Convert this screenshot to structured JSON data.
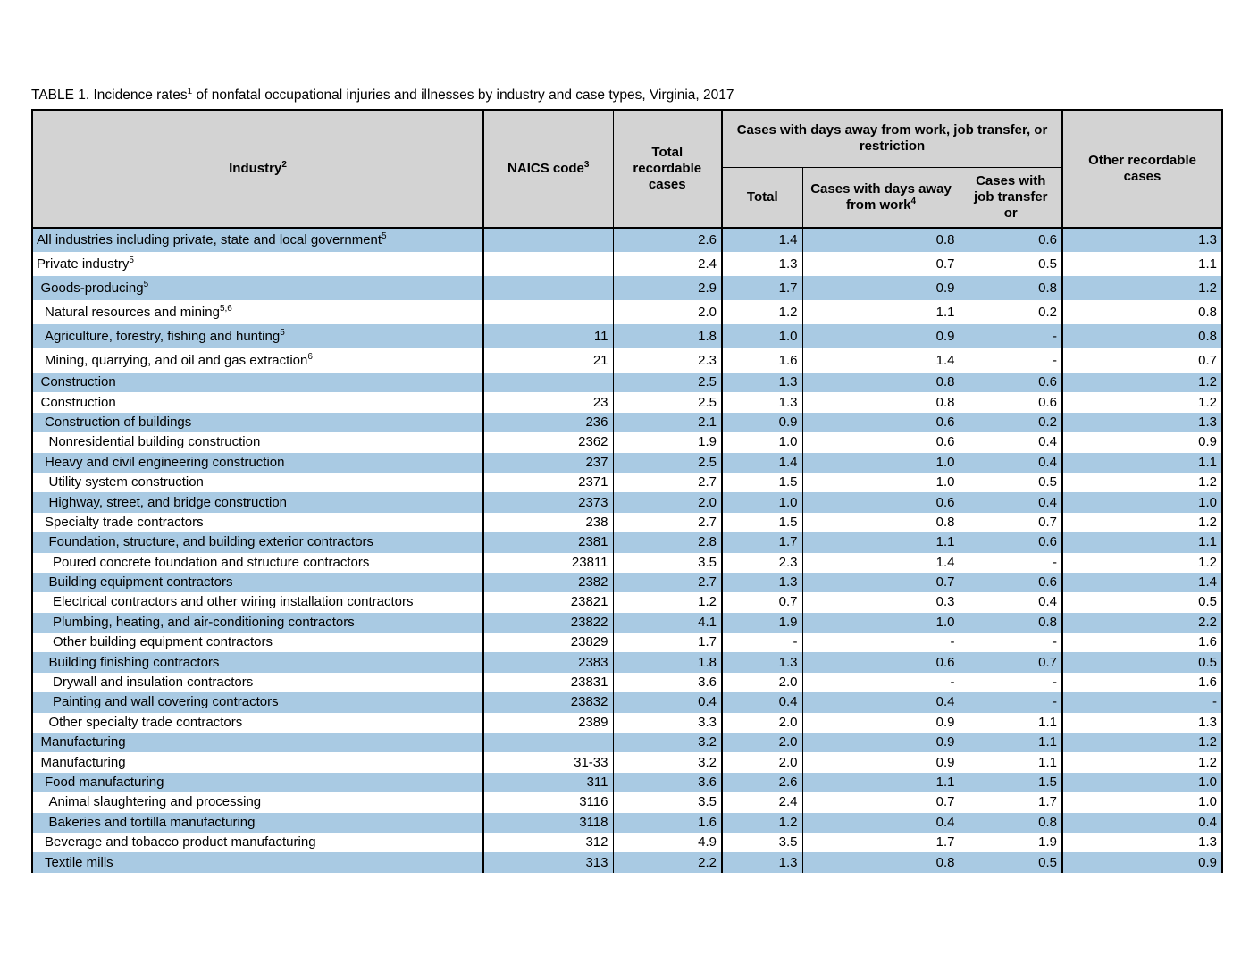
{
  "title": {
    "prefix": "TABLE 1. Incidence rates",
    "sup": "1",
    "suffix": " of nonfatal occupational injuries and illnesses by industry and case types, Virginia, 2017"
  },
  "colors": {
    "row_blue": "#a9cae3",
    "header_gray": "#d3d3d3",
    "border": "#000000"
  },
  "table": {
    "headers": {
      "industry": {
        "label": "Industry",
        "sup": "2"
      },
      "naics": {
        "label": "NAICS code",
        "sup": "3"
      },
      "total_recordable": "Total recordable cases",
      "group": "Cases with days away from work, job transfer, or restriction",
      "total": "Total",
      "days_away": {
        "label": "Cases with days away from work",
        "sup": "4"
      },
      "job_transfer": "Cases with job transfer or",
      "other": "Other recordable cases"
    },
    "rows": [
      {
        "industry": "All industries including private, state and local government",
        "sup": "5",
        "indent": 0,
        "naics": "",
        "values": [
          "2.6",
          "1.4",
          "0.8",
          "0.6",
          "1.3"
        ]
      },
      {
        "industry": "Private industry",
        "sup": "5",
        "indent": 0,
        "naics": "",
        "values": [
          "2.4",
          "1.3",
          "0.7",
          "0.5",
          "1.1"
        ]
      },
      {
        "industry": "Goods-producing",
        "sup": "5",
        "indent": 1,
        "naics": "",
        "values": [
          "2.9",
          "1.7",
          "0.9",
          "0.8",
          "1.2"
        ]
      },
      {
        "industry": "Natural resources and mining",
        "sup": "5,6",
        "indent": 2,
        "naics": "",
        "values": [
          "2.0",
          "1.2",
          "1.1",
          "0.2",
          "0.8"
        ]
      },
      {
        "industry": "Agriculture, forestry, fishing and hunting",
        "sup": "5",
        "indent": 2,
        "naics": "11",
        "values": [
          "1.8",
          "1.0",
          "0.9",
          "-",
          "0.8"
        ]
      },
      {
        "industry": "Mining, quarrying, and oil and gas extraction",
        "sup": "6",
        "indent": 2,
        "naics": "21",
        "values": [
          "2.3",
          "1.6",
          "1.4",
          "-",
          "0.7"
        ]
      },
      {
        "industry": "Construction",
        "sup": "",
        "indent": 1,
        "naics": "",
        "values": [
          "2.5",
          "1.3",
          "0.8",
          "0.6",
          "1.2"
        ]
      },
      {
        "industry": "Construction",
        "sup": "",
        "indent": 1,
        "naics": "23",
        "values": [
          "2.5",
          "1.3",
          "0.8",
          "0.6",
          "1.2"
        ]
      },
      {
        "industry": "Construction of buildings",
        "sup": "",
        "indent": 2,
        "naics": "236",
        "values": [
          "2.1",
          "0.9",
          "0.6",
          "0.2",
          "1.3"
        ]
      },
      {
        "industry": "Nonresidential building construction",
        "sup": "",
        "indent": 3,
        "naics": "2362",
        "values": [
          "1.9",
          "1.0",
          "0.6",
          "0.4",
          "0.9"
        ]
      },
      {
        "industry": "Heavy and civil engineering construction",
        "sup": "",
        "indent": 2,
        "naics": "237",
        "values": [
          "2.5",
          "1.4",
          "1.0",
          "0.4",
          "1.1"
        ]
      },
      {
        "industry": "Utility system construction",
        "sup": "",
        "indent": 3,
        "naics": "2371",
        "values": [
          "2.7",
          "1.5",
          "1.0",
          "0.5",
          "1.2"
        ]
      },
      {
        "industry": "Highway, street, and bridge construction",
        "sup": "",
        "indent": 3,
        "naics": "2373",
        "values": [
          "2.0",
          "1.0",
          "0.6",
          "0.4",
          "1.0"
        ]
      },
      {
        "industry": "Specialty trade contractors",
        "sup": "",
        "indent": 2,
        "naics": "238",
        "values": [
          "2.7",
          "1.5",
          "0.8",
          "0.7",
          "1.2"
        ]
      },
      {
        "industry": "Foundation, structure, and building exterior contractors",
        "sup": "",
        "indent": 3,
        "naics": "2381",
        "values": [
          "2.8",
          "1.7",
          "1.1",
          "0.6",
          "1.1"
        ]
      },
      {
        "industry": "Poured concrete foundation and structure contractors",
        "sup": "",
        "indent": 4,
        "naics": "23811",
        "values": [
          "3.5",
          "2.3",
          "1.4",
          "-",
          "1.2"
        ]
      },
      {
        "industry": "Building equipment contractors",
        "sup": "",
        "indent": 3,
        "naics": "2382",
        "values": [
          "2.7",
          "1.3",
          "0.7",
          "0.6",
          "1.4"
        ]
      },
      {
        "industry": "Electrical contractors and other wiring installation contractors",
        "sup": "",
        "indent": 4,
        "naics": "23821",
        "values": [
          "1.2",
          "0.7",
          "0.3",
          "0.4",
          "0.5"
        ]
      },
      {
        "industry": "Plumbing, heating, and air-conditioning contractors",
        "sup": "",
        "indent": 4,
        "naics": "23822",
        "values": [
          "4.1",
          "1.9",
          "1.0",
          "0.8",
          "2.2"
        ]
      },
      {
        "industry": "Other building equipment contractors",
        "sup": "",
        "indent": 4,
        "naics": "23829",
        "values": [
          "1.7",
          "-",
          "-",
          "-",
          "1.6"
        ]
      },
      {
        "industry": "Building finishing contractors",
        "sup": "",
        "indent": 3,
        "naics": "2383",
        "values": [
          "1.8",
          "1.3",
          "0.6",
          "0.7",
          "0.5"
        ]
      },
      {
        "industry": "Drywall and insulation contractors",
        "sup": "",
        "indent": 4,
        "naics": "23831",
        "values": [
          "3.6",
          "2.0",
          "-",
          "-",
          "1.6"
        ]
      },
      {
        "industry": "Painting and wall covering contractors",
        "sup": "",
        "indent": 4,
        "naics": "23832",
        "values": [
          "0.4",
          "0.4",
          "0.4",
          "-",
          "-"
        ]
      },
      {
        "industry": "Other specialty trade contractors",
        "sup": "",
        "indent": 3,
        "naics": "2389",
        "values": [
          "3.3",
          "2.0",
          "0.9",
          "1.1",
          "1.3"
        ]
      },
      {
        "industry": "Manufacturing",
        "sup": "",
        "indent": 1,
        "naics": "",
        "values": [
          "3.2",
          "2.0",
          "0.9",
          "1.1",
          "1.2"
        ]
      },
      {
        "industry": "Manufacturing",
        "sup": "",
        "indent": 1,
        "naics": "31-33",
        "values": [
          "3.2",
          "2.0",
          "0.9",
          "1.1",
          "1.2"
        ]
      },
      {
        "industry": "Food manufacturing",
        "sup": "",
        "indent": 2,
        "naics": "311",
        "values": [
          "3.6",
          "2.6",
          "1.1",
          "1.5",
          "1.0"
        ]
      },
      {
        "industry": "Animal slaughtering and processing",
        "sup": "",
        "indent": 3,
        "naics": "3116",
        "values": [
          "3.5",
          "2.4",
          "0.7",
          "1.7",
          "1.0"
        ]
      },
      {
        "industry": "Bakeries and tortilla manufacturing",
        "sup": "",
        "indent": 3,
        "naics": "3118",
        "values": [
          "1.6",
          "1.2",
          "0.4",
          "0.8",
          "0.4"
        ]
      },
      {
        "industry": "Beverage and tobacco product manufacturing",
        "sup": "",
        "indent": 2,
        "naics": "312",
        "values": [
          "4.9",
          "3.5",
          "1.7",
          "1.9",
          "1.3"
        ]
      },
      {
        "industry": "Textile mills",
        "sup": "",
        "indent": 2,
        "naics": "313",
        "values": [
          "2.2",
          "1.3",
          "0.8",
          "0.5",
          "0.9"
        ]
      }
    ]
  }
}
